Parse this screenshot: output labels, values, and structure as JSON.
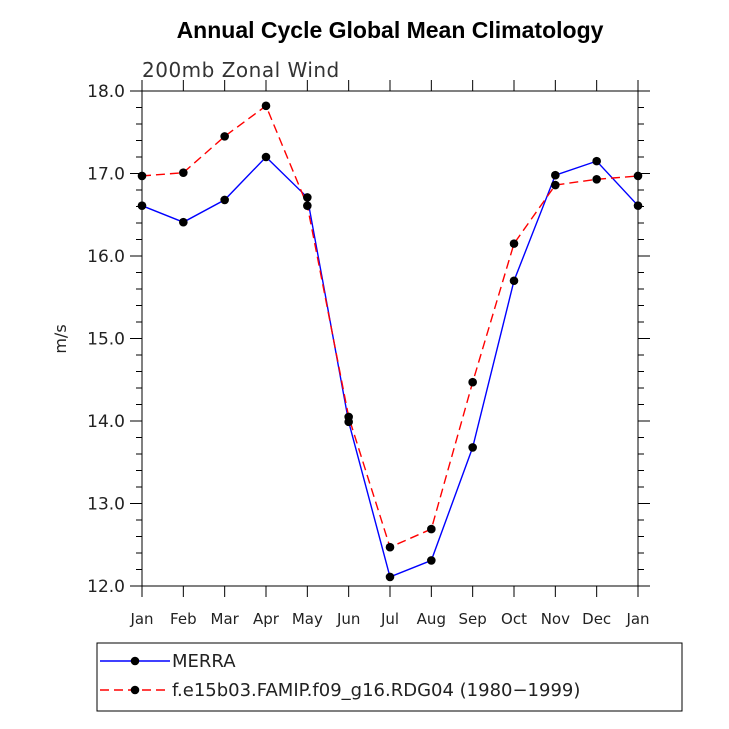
{
  "chart_data": {
    "type": "line",
    "title": "Annual Cycle Global Mean Climatology",
    "subtitle": "200mb Zonal Wind",
    "xlabel": "",
    "ylabel": "m/s",
    "categories": [
      "Jan",
      "Feb",
      "Mar",
      "Apr",
      "May",
      "Jun",
      "Jul",
      "Aug",
      "Sep",
      "Oct",
      "Nov",
      "Dec",
      "Jan"
    ],
    "ylim": [
      12.0,
      18.0
    ],
    "yticks": [
      "12.0",
      "13.0",
      "14.0",
      "15.0",
      "16.0",
      "17.0",
      "18.0"
    ],
    "grid": false,
    "legend_position": "bottom",
    "series": [
      {
        "name": "MERRA",
        "color": "#0000ff",
        "dash": "solid",
        "values": [
          16.61,
          16.41,
          16.68,
          17.2,
          16.71,
          13.99,
          12.11,
          12.31,
          13.68,
          15.7,
          16.98,
          17.15,
          16.61
        ]
      },
      {
        "name": "f.e15b03.FAMIP.f09_g16.RDG04 (1980−1999)",
        "color": "#ff0000",
        "dash": "dashed",
        "values": [
          16.97,
          17.01,
          17.45,
          17.82,
          16.61,
          14.05,
          12.47,
          12.69,
          14.47,
          16.15,
          16.86,
          16.93,
          16.97
        ]
      }
    ]
  }
}
